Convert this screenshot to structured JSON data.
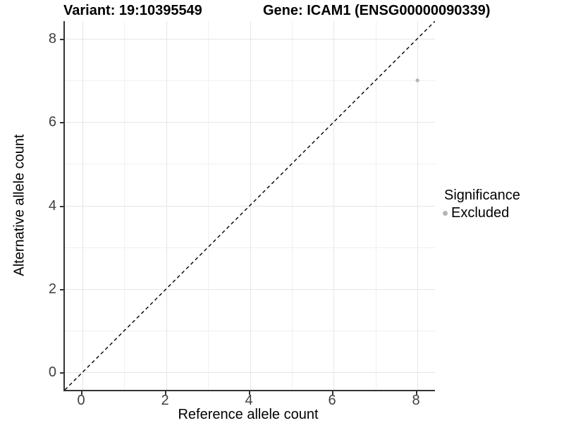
{
  "titles": {
    "variant": "Variant: 19:10395549",
    "gene": "Gene: ICAM1 (ENSG00000090339)"
  },
  "chart_data": {
    "type": "scatter",
    "title_left": "Variant: 19:10395549",
    "title_right": "Gene: ICAM1 (ENSG00000090339)",
    "xlabel": "Reference allele count",
    "ylabel": "Alternative allele count",
    "xlim": [
      -0.42,
      8.42
    ],
    "ylim": [
      -0.42,
      8.42
    ],
    "x_ticks": [
      0,
      2,
      4,
      6,
      8
    ],
    "y_ticks": [
      0,
      2,
      4,
      6,
      8
    ],
    "x_minor_ticks": [
      1,
      3,
      5,
      7
    ],
    "y_minor_ticks": [
      1,
      3,
      5,
      7
    ],
    "grid": true,
    "background": "#ffffff",
    "identity_line": {
      "slope": 1,
      "intercept": 0,
      "style": "dashed",
      "color": "#000000"
    },
    "series": [
      {
        "name": "Excluded",
        "color": "#b5b5b5",
        "points": [
          {
            "x": 8,
            "y": 7
          }
        ]
      }
    ],
    "legend": {
      "title": "Significance",
      "position": "right",
      "entries": [
        {
          "label": "Excluded",
          "color": "#b5b5b5"
        }
      ]
    }
  }
}
